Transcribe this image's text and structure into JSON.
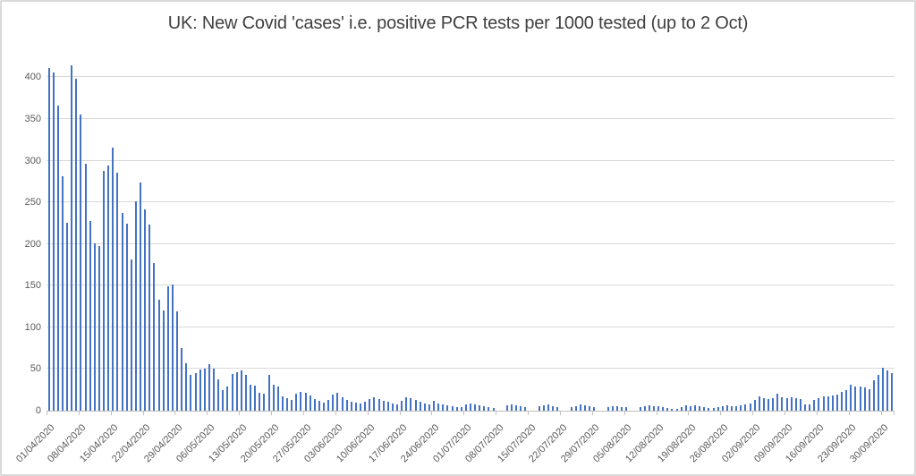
{
  "chart": {
    "title": "UK: New Covid 'cases' i.e. positive PCR tests per 1000 tested (up to 2 Oct)"
  },
  "chart_data": {
    "type": "bar",
    "title": "UK: New Covid 'cases' i.e. positive PCR tests per 1000 tested (up to 2 Oct)",
    "xlabel": "",
    "ylabel": "",
    "x_start_date": "01/04/2020",
    "x_end_date": "02/10/2020",
    "x_tick_interval_days": 7,
    "x_tick_labels": [
      "01/04/2020",
      "08/04/2020",
      "15/04/2020",
      "22/04/2020",
      "29/04/2020",
      "06/05/2020",
      "13/05/2020",
      "20/05/2020",
      "27/05/2020",
      "03/06/2020",
      "10/06/2020",
      "17/06/2020",
      "24/06/2020",
      "01/07/2020",
      "08/07/2020",
      "15/07/2020",
      "22/07/2020",
      "29/07/2020",
      "05/08/2020",
      "12/08/2020",
      "19/08/2020",
      "26/08/2020",
      "02/09/2020",
      "09/09/2020",
      "16/09/2020",
      "23/09/2020",
      "30/09/2020"
    ],
    "y_ticks": [
      0,
      50,
      100,
      150,
      200,
      250,
      300,
      350,
      400
    ],
    "ylim": [
      0,
      424
    ],
    "grid": true,
    "legend": false,
    "values": [
      411,
      406,
      366,
      281,
      225,
      414,
      398,
      355,
      296,
      228,
      201,
      197,
      288,
      294,
      316,
      286,
      237,
      224,
      181,
      251,
      274,
      241,
      223,
      177,
      133,
      120,
      149,
      151,
      119,
      75,
      57,
      43,
      45,
      49,
      50,
      56,
      50,
      38,
      25,
      29,
      44,
      46,
      48,
      43,
      31,
      30,
      22,
      20,
      43,
      31,
      29,
      17,
      15,
      13,
      20,
      23,
      21,
      18,
      14,
      12,
      10,
      13,
      19,
      21,
      16,
      13,
      11,
      10,
      9,
      11,
      14,
      16,
      14,
      12,
      11,
      9,
      8,
      12,
      16,
      15,
      13,
      11,
      9,
      7,
      12,
      9,
      8,
      6,
      5,
      4,
      4,
      8,
      9,
      8,
      6,
      5,
      4,
      3,
      0,
      0,
      6,
      7,
      6,
      5,
      4,
      0,
      0,
      5,
      6,
      7,
      5,
      4,
      0,
      0,
      4,
      5,
      7,
      6,
      5,
      4,
      0,
      0,
      4,
      5,
      5,
      4,
      4,
      0,
      0,
      4,
      5,
      6,
      5,
      5,
      4,
      3,
      2,
      2,
      4,
      6,
      5,
      6,
      5,
      4,
      3,
      3,
      4,
      5,
      6,
      5,
      5,
      6,
      7,
      9,
      13,
      17,
      15,
      14,
      15,
      20,
      16,
      15,
      16,
      15,
      14,
      8,
      8,
      13,
      15,
      17,
      17,
      18,
      19,
      23,
      25,
      31,
      29,
      29,
      28,
      26,
      37,
      43,
      52,
      48,
      45
    ],
    "colors": {
      "bar": "#4472C4",
      "gridline": "#D9D9D9",
      "axis": "#BFBFBF",
      "tick_label": "#595959",
      "title": "#404040",
      "background": "#FFFFFF",
      "frame_border": "#D9D9D9"
    }
  }
}
